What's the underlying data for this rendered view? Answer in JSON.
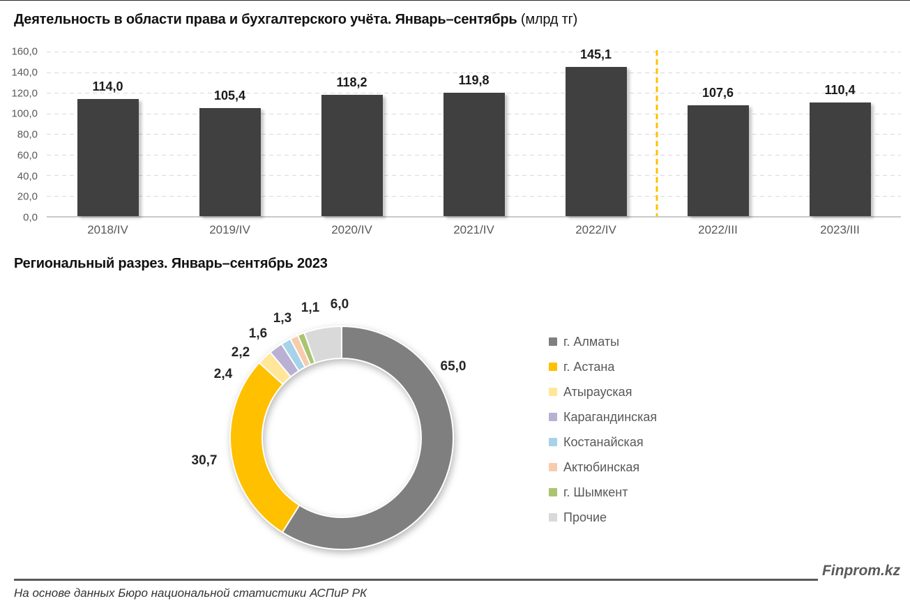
{
  "titles": {
    "bar_main": "Деятельность в области права и бухгалтерского учёта. Январь–сентябрь",
    "bar_unit": " (млрд тг)",
    "donut": "Региональный разрез. Январь–сентябрь 2023"
  },
  "chart_data": [
    {
      "type": "bar",
      "title": "Деятельность в области права и бухгалтерского учёта. Январь–сентябрь (млрд тг)",
      "categories": [
        "2018/IV",
        "2019/IV",
        "2020/IV",
        "2021/IV",
        "2022/IV",
        "2022/III",
        "2023/III"
      ],
      "values": [
        114.0,
        105.4,
        118.2,
        119.8,
        145.1,
        107.6,
        110.4
      ],
      "xlabel": "",
      "ylabel": "",
      "ylim": [
        0,
        160
      ],
      "ytick_step": 20,
      "ytick_labels": [
        "0,0",
        "20,0",
        "40,0",
        "60,0",
        "80,0",
        "100,0",
        "120,0",
        "140,0",
        "160,0"
      ],
      "grid": true,
      "decimal_separator": ",",
      "bar_color": "#404040",
      "grid_color": "#d9d9d9",
      "separator_after_index": 4,
      "separator_color": "#FFC000",
      "legend_position": "none"
    },
    {
      "type": "donut",
      "title": "Региональный разрез. Январь–сентябрь 2023",
      "series": [
        {
          "name": "г. Алматы",
          "value": 65.0,
          "color": "#7F7F7F"
        },
        {
          "name": "г. Астана",
          "value": 30.7,
          "color": "#FFC000"
        },
        {
          "name": "Атырауская",
          "value": 2.4,
          "color": "#FFE699"
        },
        {
          "name": "Карагандинская",
          "value": 2.2,
          "color": "#B9B0D4"
        },
        {
          "name": "Костанайская",
          "value": 1.6,
          "color": "#A6D3E8"
        },
        {
          "name": "Актюбинская",
          "value": 1.3,
          "color": "#F8CBAD"
        },
        {
          "name": "г. Шымкент",
          "value": 1.1,
          "color": "#A9C56F"
        },
        {
          "name": "Прочие",
          "value": 6.0,
          "color": "#D9D9D9"
        }
      ],
      "start_angle_deg": 0,
      "direction": "clockwise",
      "legend_position": "right",
      "decimal_separator": ","
    }
  ],
  "footer": {
    "source": "На основе данных Бюро национальной статистики АСПиР РК",
    "brand": "Finprom.kz"
  }
}
